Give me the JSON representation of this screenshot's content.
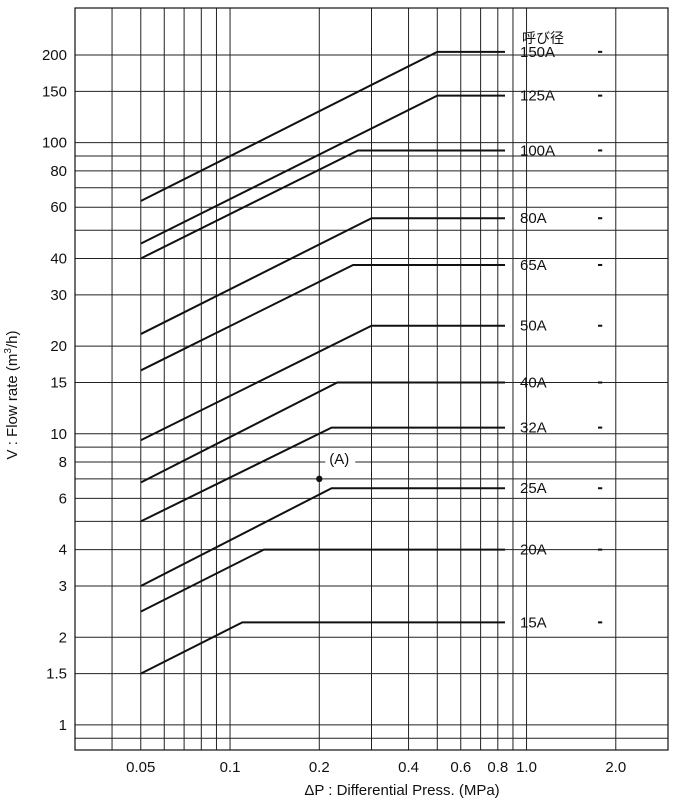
{
  "chart_data": {
    "type": "line",
    "title": "",
    "xlabel": "ΔP : Differential Press. (MPa)",
    "ylabel": "V : Flow rate (m³/h)",
    "ylabel_parts": {
      "before": "V : Flow rate (m",
      "sup": "3",
      "after": "/h)"
    },
    "xscale": "log",
    "yscale": "log",
    "xlim": [
      0.03,
      3.0
    ],
    "ylim": [
      0.82,
      290
    ],
    "grid": true,
    "legend_title": "呼び径",
    "x_ticks": [
      {
        "value": 0.05,
        "label": "0.05"
      },
      {
        "value": 0.1,
        "label": "0.1"
      },
      {
        "value": 0.2,
        "label": "0.2"
      },
      {
        "value": 0.4,
        "label": "0.4"
      },
      {
        "value": 0.6,
        "label": "0.6"
      },
      {
        "value": 0.8,
        "label": "0.8"
      },
      {
        "value": 1.0,
        "label": "1.0"
      },
      {
        "value": 2.0,
        "label": "2.0"
      }
    ],
    "y_ticks": [
      {
        "value": 1,
        "label": "1"
      },
      {
        "value": 1.5,
        "label": "1.5"
      },
      {
        "value": 2,
        "label": "2"
      },
      {
        "value": 3,
        "label": "3"
      },
      {
        "value": 4,
        "label": "4"
      },
      {
        "value": 6,
        "label": "6"
      },
      {
        "value": 8,
        "label": "8"
      },
      {
        "value": 10,
        "label": "10"
      },
      {
        "value": 15,
        "label": "15"
      },
      {
        "value": 20,
        "label": "20"
      },
      {
        "value": 30,
        "label": "30"
      },
      {
        "value": 40,
        "label": "40"
      },
      {
        "value": 60,
        "label": "60"
      },
      {
        "value": 80,
        "label": "80"
      },
      {
        "value": 100,
        "label": "100"
      },
      {
        "value": 150,
        "label": "150"
      },
      {
        "value": 200,
        "label": "200"
      }
    ],
    "x_grid": [
      0.04,
      0.05,
      0.06,
      0.07,
      0.08,
      0.09,
      0.1,
      0.2,
      0.3,
      0.4,
      0.5,
      0.6,
      0.7,
      0.8,
      0.9,
      1.0,
      2.0
    ],
    "y_grid": [
      0.9,
      1,
      1.5,
      2,
      3,
      4,
      5,
      6,
      7,
      8,
      9,
      10,
      15,
      20,
      30,
      40,
      50,
      60,
      70,
      80,
      90,
      100,
      150,
      200
    ],
    "series": [
      {
        "name": "150A",
        "x": [
          0.05,
          0.5,
          1.8
        ],
        "y": [
          63,
          205,
          205
        ]
      },
      {
        "name": "125A",
        "x": [
          0.05,
          0.5,
          1.8
        ],
        "y": [
          45,
          145,
          145
        ]
      },
      {
        "name": "100A",
        "x": [
          0.05,
          0.27,
          1.8
        ],
        "y": [
          40,
          94,
          94
        ]
      },
      {
        "name": "80A",
        "x": [
          0.05,
          0.3,
          1.8
        ],
        "y": [
          22,
          55,
          55
        ]
      },
      {
        "name": "65A",
        "x": [
          0.05,
          0.26,
          1.8
        ],
        "y": [
          16.5,
          38,
          38
        ]
      },
      {
        "name": "50A",
        "x": [
          0.05,
          0.3,
          1.8
        ],
        "y": [
          9.5,
          23.5,
          23.5
        ]
      },
      {
        "name": "40A",
        "x": [
          0.05,
          0.23,
          1.8
        ],
        "y": [
          6.8,
          15,
          15
        ]
      },
      {
        "name": "32A",
        "x": [
          0.05,
          0.22,
          1.8
        ],
        "y": [
          5.0,
          10.5,
          10.5
        ]
      },
      {
        "name": "25A",
        "x": [
          0.05,
          0.22,
          1.8
        ],
        "y": [
          3.0,
          6.5,
          6.5
        ]
      },
      {
        "name": "20A",
        "x": [
          0.05,
          0.13,
          1.8
        ],
        "y": [
          2.45,
          4.0,
          4.0
        ]
      },
      {
        "name": "15A",
        "x": [
          0.05,
          0.11,
          1.8
        ],
        "y": [
          1.5,
          2.25,
          2.25
        ]
      }
    ],
    "annotations": [
      {
        "text": "(A)",
        "x": 0.2,
        "y": 7.0
      }
    ]
  }
}
